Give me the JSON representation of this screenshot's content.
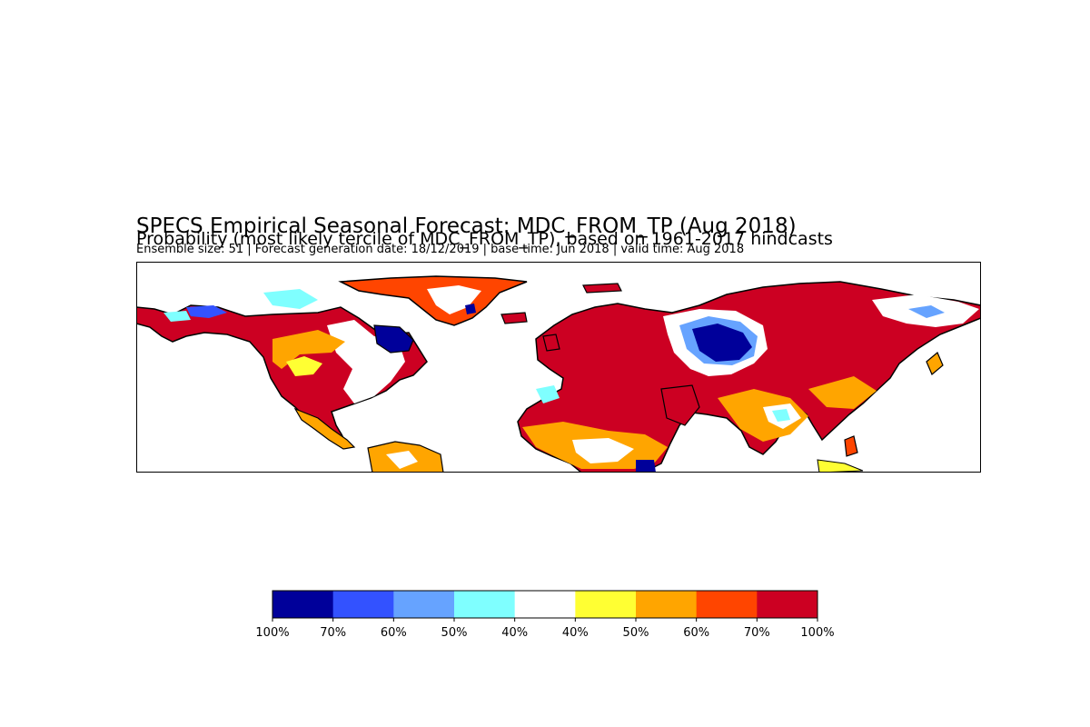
{
  "figure": {
    "title": "SPECS Empirical Seasonal Forecast: MDC_FROM_TP (Aug 2018)",
    "subtitle": "Probability (most likely tercile of MDC_FROM_TP), based on 1961-2017 hindcasts",
    "info": "Ensemble size: 51 | Forecast generation date: 18/12/2019 | base time: Jun 2018 | valid time: Aug 2018"
  },
  "colorbar": {
    "segments": [
      {
        "label": "100%",
        "color": "#00009a"
      },
      {
        "label": "70%",
        "color": "#3352ff"
      },
      {
        "label": "60%",
        "color": "#66a3ff"
      },
      {
        "label": "50%",
        "color": "#7fffff"
      },
      {
        "label": "40%",
        "color": "#ffffff"
      },
      {
        "label": "40%",
        "color": "#ffff33"
      },
      {
        "label": "50%",
        "color": "#ffa500"
      },
      {
        "label": "60%",
        "color": "#ff4500"
      },
      {
        "label": "70%",
        "color": "#cc0022"
      }
    ],
    "end_label": "100%"
  },
  "map": {
    "colors": {
      "dark_red": "#cc0022",
      "red_orange": "#ff4500",
      "orange": "#ffa500",
      "yellow": "#ffff33",
      "cyan": "#7fffff",
      "light_blue": "#66a3ff",
      "blue": "#3352ff",
      "dark_blue": "#00009a",
      "coast": "#000000"
    }
  }
}
